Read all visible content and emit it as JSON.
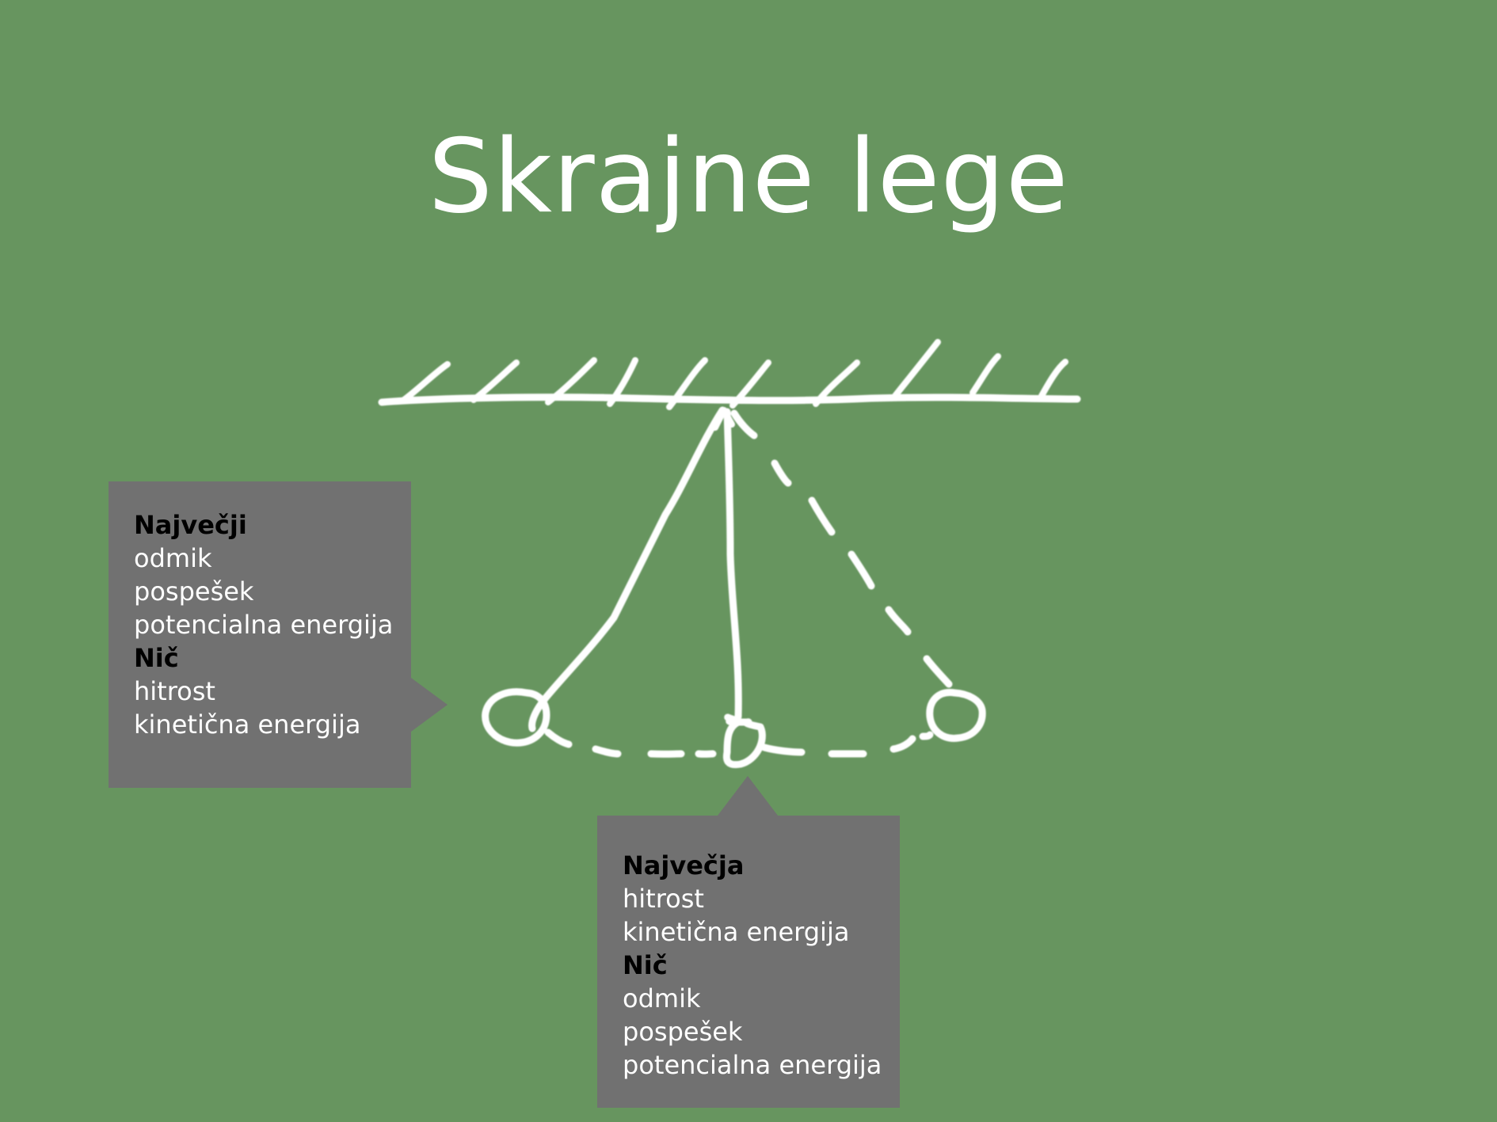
{
  "title": "Skrajne lege",
  "colors": {
    "background": "#67955f",
    "callout_background": "#717171",
    "chalk": "#ffffff",
    "heading_text": "#000000"
  },
  "diagram": {
    "icon": "pendulum-chalk-drawing",
    "elements": [
      "ceiling-with-hatching",
      "pivot-arrow",
      "left-string",
      "center-string",
      "right-dashed-string",
      "left-bob",
      "center-bob",
      "right-bob",
      "dashed-swing-arc"
    ]
  },
  "callout_left": {
    "heading_max": "Največji",
    "max_items": [
      "odmik",
      "pospešek",
      "potencialna energija"
    ],
    "heading_zero": "Nič",
    "zero_items": [
      "hitrost",
      "kinetična energija"
    ]
  },
  "callout_bottom": {
    "heading_max": "Največja",
    "max_items": [
      "hitrost",
      "kinetična energija"
    ],
    "heading_zero": "Nič",
    "zero_items": [
      "odmik",
      "pospešek",
      "potencialna energija"
    ]
  }
}
